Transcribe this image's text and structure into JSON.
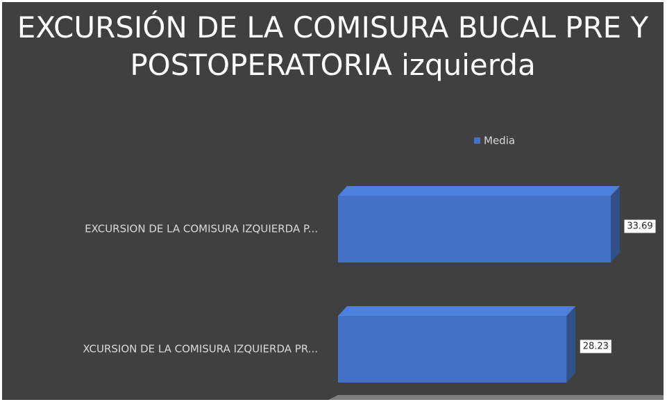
{
  "chart_data": {
    "type": "bar3d_horizontal",
    "title": "EXCURSIÓN DE LA COMISURA BUCAL PRE Y POSTOPERATORIA  izquierda",
    "categories": [
      "EXCURSION DE LA COMISURA IZQUIERDA P...",
      "XCURSION DE LA COMISURA IZQUIERDA PR..."
    ],
    "series": [
      {
        "name": "Media",
        "color": "#4472c4",
        "values": [
          33.69,
          28.23
        ]
      }
    ],
    "legend": "top"
  }
}
